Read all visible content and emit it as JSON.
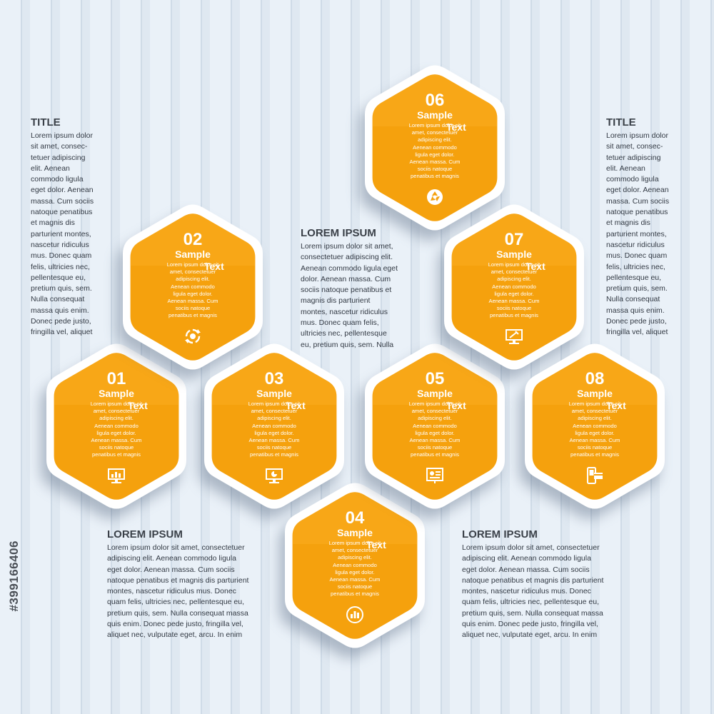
{
  "colors": {
    "hex_fill": "#f5a10d",
    "hex_border": "#ffffff",
    "text_dark": "#333a44",
    "background": "#e4ecf4"
  },
  "hexagons": [
    {
      "number": "01",
      "sample": "Sample",
      "text_word": "Text",
      "body": "Lorem ipsum dolor sit\namet, consectetuer\nadipiscing elit.\nAenean commodo\nligula eget dolor.\nAenean massa. Cum\nsociis natoque\npenatibus et magnis",
      "icon": "monitor-chart-icon"
    },
    {
      "number": "02",
      "sample": "Sample",
      "text_word": "Text",
      "body": "Lorem ipsum dolor sit\namet, consectetuer\nadipiscing elit.\nAenean commodo\nligula eget dolor.\nAenean massa. Cum\nsociis natoque\npenatibus et magnis",
      "icon": "cycle-arrows-icon"
    },
    {
      "number": "03",
      "sample": "Sample",
      "text_word": "Text",
      "body": "Lorem ipsum dolor sit\namet, consectetuer\nadipiscing elit.\nAenean commodo\nligula eget dolor.\nAenean massa. Cum\nsociis natoque\npenatibus et magnis",
      "icon": "monitor-pie-chart-icon"
    },
    {
      "number": "04",
      "sample": "Sample",
      "text_word": "Text",
      "body": "Lorem ipsum dolor sit\namet, consectetuer\nadipiscing elit.\nAenean commodo\nligula eget dolor.\nAenean massa. Cum\nsociis natoque\npenatibus et magnis",
      "icon": "circle-bar-chart-icon"
    },
    {
      "number": "05",
      "sample": "Sample",
      "text_word": "Text",
      "body": "Lorem ipsum dolor sit\namet, consectetuer\nadipiscing elit.\nAenean commodo\nligula eget dolor.\nAenean massa. Cum\nsociis natoque\npenatibus et magnis",
      "icon": "presentation-board-icon"
    },
    {
      "number": "06",
      "sample": "Sample",
      "text_word": "Text",
      "body": "Lorem ipsum dolor sit\namet, consectetuer\nadipiscing elit.\nAenean commodo\nligula eget dolor.\nAenean massa. Cum\nsociis natoque\npenatibus et magnis",
      "icon": "camera-aperture-icon"
    },
    {
      "number": "07",
      "sample": "Sample",
      "text_word": "Text",
      "body": "Lorem ipsum dolor sit\namet, consectetuer\nadipiscing elit.\nAenean commodo\nligula eget dolor.\nAenean massa. Cum\nsociis natoque\npenatibus et magnis",
      "icon": "monitor-tools-icon"
    },
    {
      "number": "08",
      "sample": "Sample",
      "text_word": "Text",
      "body": "Lorem ipsum dolor sit\namet, consectetuer\nadipiscing elit.\nAenean commodo\nligula eget dolor.\nAenean massa. Cum\nsociis natoque\npenatibus et magnis",
      "icon": "phone-card-icon"
    }
  ],
  "side_texts": {
    "left_title": {
      "title": "TITLE",
      "body": "Lorem ipsum dolor\nsit amet, consec-\ntetuer adipiscing\nelit. Aenean\ncommodo ligula\neget dolor. Aenean\nmassa. Cum sociis\nnatoque penatibus\net magnis dis\nparturient montes,\nnascetur ridiculus\nmus. Donec quam\nfelis, ultricies nec,\npellentesque eu,\npretium quis, sem.\nNulla consequat\nmassa quis enim.\nDonec pede justo,\nfringilla vel, aliquet"
    },
    "right_title": {
      "title": "TITLE",
      "body": "Lorem ipsum dolor\nsit amet, consec-\ntetuer adipiscing\nelit. Aenean\ncommodo ligula\neget dolor. Aenean\nmassa. Cum sociis\nnatoque penatibus\net magnis dis\nparturient montes,\nnascetur ridiculus\nmus. Donec quam\nfelis, ultricies nec,\npellentesque eu,\npretium quis, sem.\nNulla consequat\nmassa quis enim.\nDonec pede justo,\nfringilla vel, aliquet"
    },
    "center": {
      "title": "LOREM IPSUM",
      "body": "Lorem ipsum dolor sit amet,\nconsectetuer adipiscing elit.\nAenean commodo ligula eget\ndolor. Aenean massa. Cum\nsociis natoque penatibus et\nmagnis dis parturient\nmontes, nascetur ridiculus\nmus. Donec quam felis,\nultricies nec, pellentesque\neu, pretium quis, sem. Nulla"
    },
    "bottom_left": {
      "title": "LOREM IPSUM",
      "body": "Lorem ipsum dolor sit amet, consectetuer\nadipiscing elit. Aenean commodo ligula\neget dolor. Aenean massa. Cum sociis\nnatoque penatibus et magnis dis parturient\nmontes, nascetur ridiculus mus. Donec\nquam felis, ultricies nec, pellentesque eu,\npretium quis, sem. Nulla consequat massa\nquis enim. Donec pede justo, fringilla vel,\naliquet nec, vulputate eget, arcu. In enim"
    },
    "bottom_right": {
      "title": "LOREM IPSUM",
      "body": "Lorem ipsum dolor sit amet, consectetuer\nadipiscing elit. Aenean commodo ligula\neget dolor. Aenean massa. Cum sociis\nnatoque penatibus et magnis dis parturient\nmontes, nascetur ridiculus mus. Donec\nquam felis, ultricies nec, pellentesque eu,\npretium quis, sem. Nulla consequat massa\nquis enim. Donec pede justo, fringilla vel,\naliquet nec, vulputate eget, arcu. In enim"
    }
  },
  "watermark": "#399166406"
}
